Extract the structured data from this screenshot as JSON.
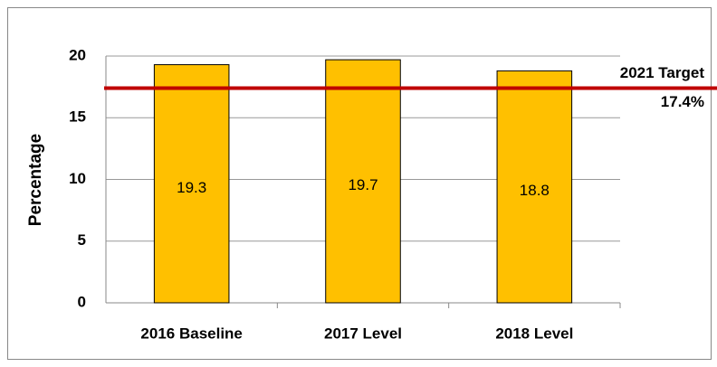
{
  "chart_data": {
    "type": "bar",
    "y_label": "Percentage",
    "categories": [
      "2016 Baseline",
      "2017 Level",
      "2018 Level"
    ],
    "values": [
      19.3,
      19.7,
      18.8
    ],
    "color": "#ffc000",
    "ylim": [
      0,
      20
    ],
    "yticks": [
      0,
      5,
      10,
      15,
      20
    ],
    "grid": true,
    "target": {
      "label": "2021 Target",
      "value": 17.4,
      "value_label": "17.4%",
      "color": "#c00000"
    }
  }
}
